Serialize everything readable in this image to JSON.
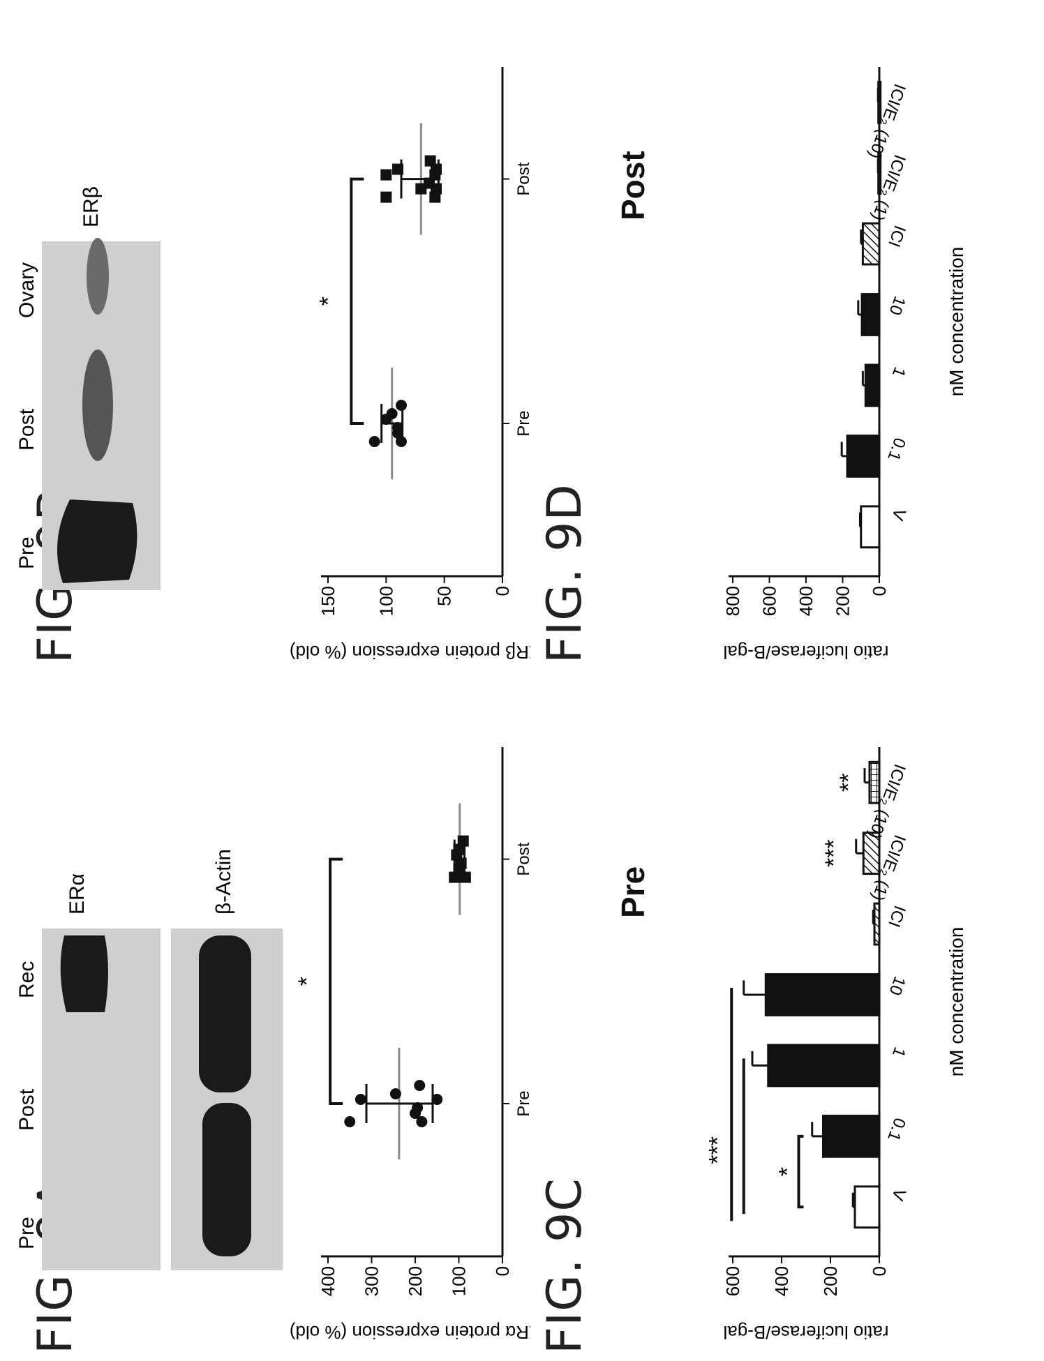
{
  "figures": {
    "a": {
      "label": "FIG. 9A",
      "blot_lanes": [
        "Pre",
        "Post",
        "Rec"
      ],
      "blot_bands": [
        "ERα",
        "β-Actin"
      ],
      "significance": "*"
    },
    "b": {
      "label": "FIG. 9B",
      "blot_lanes": [
        "Pre",
        "Post",
        "Ovary"
      ],
      "blot_bands": [
        "ERβ"
      ],
      "significance": "*"
    },
    "c": {
      "label": "FIG. 9C",
      "title": "Pre",
      "sig_a": "*",
      "sig_b": "***",
      "sig_c": "***",
      "sig_d": "**"
    },
    "d": {
      "label": "FIG. 9D",
      "title": "Post"
    }
  },
  "colors": {
    "ink": "#111111",
    "mean_line": "#8a8a8a",
    "blot_bg": "#cfcfcf",
    "band": "#1a1a1a"
  },
  "chart_data": [
    {
      "id": "9A",
      "type": "scatter",
      "ylabel": "ERα protein expression (% old)",
      "ylim": [
        0,
        400
      ],
      "yticks": [
        0,
        100,
        200,
        300,
        400
      ],
      "categories": [
        "Pre",
        "Post"
      ],
      "groups": [
        {
          "name": "Pre",
          "marker": "circle",
          "values": [
            350,
            325,
            245,
            200,
            195,
            190,
            185,
            150
          ],
          "mean": 237,
          "sd_low": 160,
          "sd_high": 312
        },
        {
          "name": "Post",
          "marker": "square",
          "values": [
            110,
            105,
            100,
            100,
            95,
            90,
            85
          ],
          "mean": 98,
          "sd_low": 87,
          "sd_high": 110
        }
      ],
      "significance": "*"
    },
    {
      "id": "9B",
      "type": "scatter",
      "ylabel": "ERβ protein expression (% old)",
      "ylim": [
        0,
        150
      ],
      "yticks": [
        0,
        50,
        100,
        150
      ],
      "categories": [
        "Pre",
        "Post"
      ],
      "groups": [
        {
          "name": "Pre",
          "marker": "circle",
          "values": [
            110,
            100,
            95,
            90,
            90,
            87,
            87
          ],
          "mean": 95,
          "sd_low": 86,
          "sd_high": 104
        },
        {
          "name": "Post",
          "marker": "square",
          "values": [
            100,
            100,
            90,
            70,
            63,
            62,
            58,
            58,
            57,
            57
          ],
          "mean": 70,
          "sd_low": 55,
          "sd_high": 87
        }
      ],
      "significance": "*"
    },
    {
      "id": "9C",
      "type": "bar",
      "ylabel": "ratio luciferase/B-gal",
      "xlabel": "nM concentration",
      "ylim": [
        0,
        600
      ],
      "yticks": [
        0,
        200,
        400,
        600
      ],
      "categories": [
        "V",
        "0.1",
        "1",
        "10",
        "ICI",
        "ICI/E₂ (1)",
        "ICI/E₂ (10)"
      ],
      "values": [
        100,
        230,
        455,
        465,
        20,
        65,
        40
      ],
      "errors": [
        8,
        45,
        65,
        90,
        5,
        30,
        20
      ],
      "patterns": [
        "white",
        "black",
        "black",
        "black",
        "diagonal",
        "diagonal",
        "grid"
      ]
    },
    {
      "id": "9D",
      "type": "bar",
      "ylabel": "ratio luciferase/B-gal",
      "xlabel": "nM concentration",
      "ylim": [
        0,
        800
      ],
      "yticks": [
        0,
        200,
        400,
        600,
        800
      ],
      "categories": [
        "V",
        "0.1",
        "1",
        "10",
        "ICI",
        "ICI/E₂ (1)",
        "ICI/E₂ (10)"
      ],
      "values": [
        100,
        175,
        75,
        95,
        90,
        5,
        5
      ],
      "errors": [
        5,
        30,
        15,
        20,
        10,
        2,
        2
      ],
      "patterns": [
        "white",
        "black",
        "black",
        "black",
        "diagonal",
        "black",
        "black"
      ]
    }
  ]
}
